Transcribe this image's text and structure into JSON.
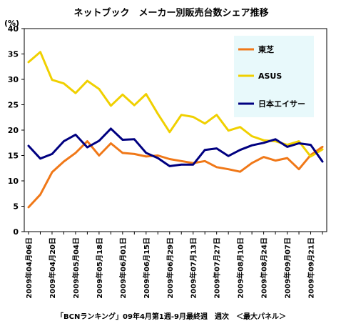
{
  "chart_data": {
    "type": "line",
    "title": "ネットブック　メーカー別販売台数シェア推移",
    "unit": "(%)",
    "source_note": "「BCNランキング」09年4月第1週-9月最終週　週次　＜最大パネル＞",
    "ylim": [
      0,
      40
    ],
    "yticks": [
      0,
      5,
      10,
      15,
      20,
      25,
      30,
      35,
      40
    ],
    "grid": false,
    "legend_position": "right",
    "x_tick_labels": [
      "2009年04月06日",
      "2009年04月20日",
      "2009年05月04日",
      "2009年05月18日",
      "2009年06月01日",
      "2009年06月15日",
      "2009年06月29日",
      "2009年07月13日",
      "2009年07月27日",
      "2009年08月10日",
      "2009年08月24日",
      "2009年09月07日",
      "2009年09月21日"
    ],
    "series": [
      {
        "name": "東芝",
        "color": "#F07818",
        "values": [
          4.8,
          7.3,
          11.7,
          13.8,
          15.5,
          17.8,
          15.0,
          17.4,
          15.5,
          15.3,
          14.8,
          15.0,
          14.3,
          13.9,
          13.5,
          13.9,
          12.7,
          12.3,
          11.8,
          13.5,
          14.7,
          14.0,
          14.5,
          12.3,
          15.1,
          16.7
        ]
      },
      {
        "name": "ASUS",
        "color": "#F0D000",
        "values": [
          33.4,
          35.4,
          29.9,
          29.2,
          27.3,
          29.7,
          28.1,
          24.8,
          27.0,
          24.9,
          27.1,
          23.2,
          19.6,
          23.0,
          22.6,
          21.3,
          23.0,
          19.9,
          20.6,
          18.8,
          18.0,
          17.8,
          17.1,
          17.8,
          14.8,
          16.2
        ]
      },
      {
        "name": "日本エイサー",
        "color": "#000080",
        "values": [
          16.9,
          14.4,
          15.3,
          17.8,
          19.1,
          16.6,
          17.9,
          20.3,
          18.1,
          18.2,
          15.5,
          14.5,
          12.9,
          13.2,
          13.2,
          16.1,
          16.4,
          14.9,
          16.1,
          17.0,
          17.5,
          18.2,
          16.7,
          17.4,
          17.1,
          13.8
        ]
      }
    ]
  }
}
